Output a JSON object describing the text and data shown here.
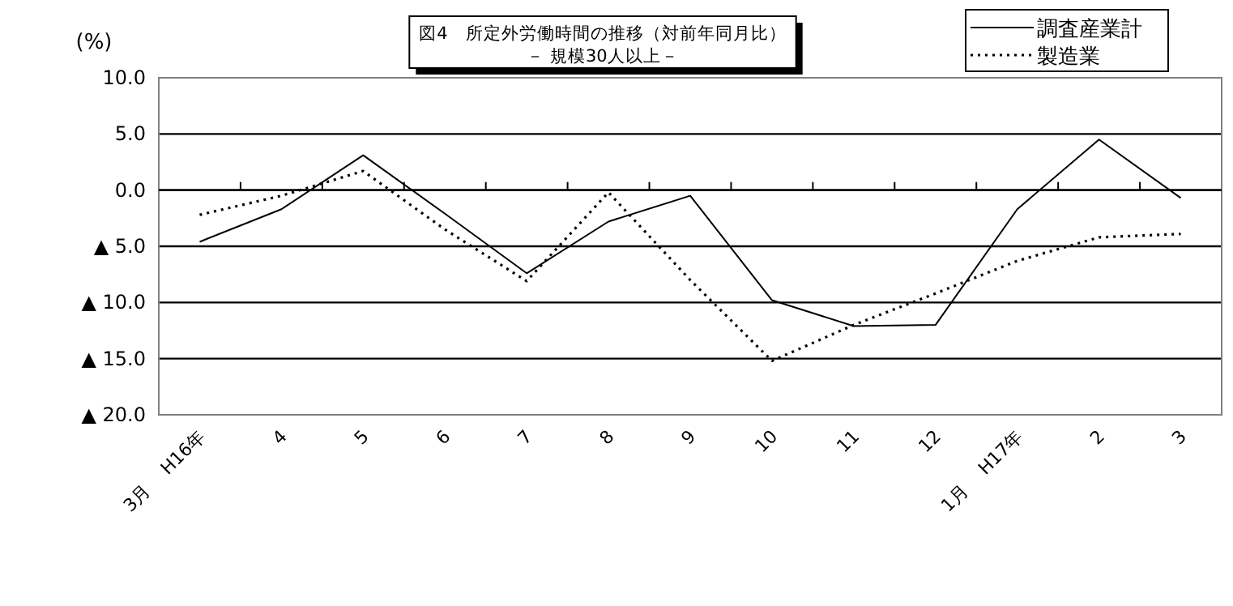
{
  "chart_data": {
    "type": "line",
    "title": "図4　所定外労働時間の推移（対前年同月比）",
    "subtitle": "－ 規模30人以上－",
    "ylabel": "(%)",
    "categories": [
      "3月　 H16年",
      "4",
      "5",
      "6",
      "7",
      "8",
      "9",
      "10",
      "11",
      "12",
      "1月　 H17年",
      "2",
      "3"
    ],
    "series": [
      {
        "name": "調査産業計",
        "color": "#000000",
        "line_style": "solid",
        "values": [
          -4.6,
          -1.7,
          3.1,
          -2.1,
          -7.4,
          -2.8,
          -0.5,
          -9.8,
          -12.1,
          -12.0,
          -1.7,
          4.5,
          -0.7
        ]
      },
      {
        "name": "製造業",
        "color": "#000000",
        "line_style": "dotted",
        "values": [
          -2.2,
          -0.5,
          1.7,
          -3.5,
          -8.1,
          -0.2,
          -8.0,
          -15.2,
          -12.0,
          -9.2,
          -6.3,
          -4.2,
          -3.9
        ]
      }
    ],
    "ylim": [
      -20,
      10
    ],
    "yticks": [
      {
        "value": 10,
        "label": "10.0"
      },
      {
        "value": 5,
        "label": "5.0"
      },
      {
        "value": 0,
        "label": "0.0"
      },
      {
        "value": -5,
        "label": "▲ 5.0"
      },
      {
        "value": -10,
        "label": "▲ 10.0"
      },
      {
        "value": -15,
        "label": "▲ 15.0"
      },
      {
        "value": -20,
        "label": "▲ 20.0"
      }
    ],
    "grid": "y",
    "legend": "top right",
    "marker": "none"
  }
}
